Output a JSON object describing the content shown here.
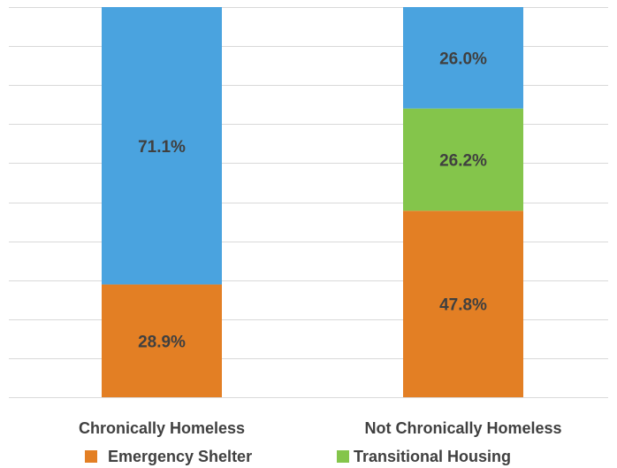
{
  "chart_data": {
    "type": "bar",
    "stacked": true,
    "normalized_percent": true,
    "categories": [
      "Chronically Homeless",
      "Not Chronically Homeless"
    ],
    "series": [
      {
        "name": "Emergency Shelter",
        "values": [
          28.9,
          47.8
        ],
        "labels": [
          "28.9%",
          "47.8%"
        ],
        "color": "#e37f24"
      },
      {
        "name": "Transitional Housing",
        "values": [
          0,
          26.2
        ],
        "labels": [
          "",
          "26.2%"
        ],
        "color": "#84c54b"
      },
      {
        "name": "",
        "values": [
          71.1,
          26.0
        ],
        "labels": [
          "71.1%",
          "26.0%"
        ],
        "color": "#4aa3df"
      }
    ],
    "ylim": [
      0,
      100
    ],
    "grid": true,
    "legend_position": "bottom",
    "legend_entries": [
      "Emergency Shelter",
      "Transitional Housing"
    ]
  }
}
